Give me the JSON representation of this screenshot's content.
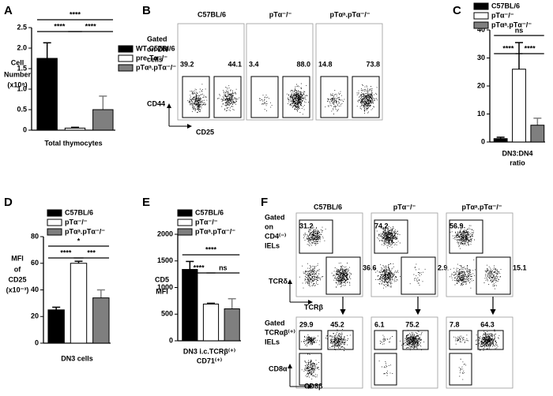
{
  "chart_data": [
    {
      "type": "bar",
      "letter": "A",
      "ylabel": [
        "Cell",
        "Number",
        "(x10⁸)"
      ],
      "categories": [
        "Total thymocytes"
      ],
      "ylim": [
        0,
        2.5
      ],
      "yticks": [
        0,
        0.5,
        {
          "value": 1,
          "label": "1.0"
        },
        1.5,
        {
          "value": 2,
          "label": "2.0"
        },
        2.5
      ],
      "series": [
        {
          "name": "WT C57Bl/6",
          "color": "#000000",
          "values": [
            1.75
          ],
          "errors": [
            0.38
          ]
        },
        {
          "name": "pre-Tα⁻/⁻",
          "color": "#ffffff",
          "values": [
            0.05
          ],
          "errors": [
            0.02
          ]
        },
        {
          "name": "pTαᵃ.pTα⁻/⁻",
          "color": "#7f7f7f",
          "values": [
            0.5
          ],
          "errors": [
            0.33
          ]
        }
      ],
      "significance": [
        {
          "label": "****",
          "pair": [
            0,
            2
          ]
        },
        {
          "label": "****",
          "pair": [
            0,
            1
          ]
        },
        {
          "label": "****",
          "pair": [
            1,
            2
          ]
        }
      ]
    },
    {
      "type": "bar",
      "letter": "C",
      "categories": [
        [
          "DN3:DN4",
          "ratio"
        ]
      ],
      "ylim": [
        0,
        40
      ],
      "yticks": [
        0,
        10,
        20,
        30,
        40
      ],
      "series": [
        {
          "name": "C57BL/6",
          "color": "#000000",
          "values": [
            1.2
          ],
          "errors": [
            0.5
          ]
        },
        {
          "name": "pTα⁻/⁻",
          "color": "#ffffff",
          "values": [
            26
          ],
          "errors": [
            9.5
          ]
        },
        {
          "name": "pTαᵃ.pTα⁻/⁻",
          "color": "#7f7f7f",
          "values": [
            6
          ],
          "errors": [
            2.5
          ]
        }
      ],
      "significance": [
        {
          "label": "ns",
          "pair": [
            0,
            2
          ]
        },
        {
          "label": "****",
          "pair": [
            0,
            1
          ]
        },
        {
          "label": "****",
          "pair": [
            1,
            2
          ]
        }
      ]
    },
    {
      "type": "bar",
      "letter": "D",
      "ylabel": [
        "MFI",
        "of",
        "CD25",
        "(x10⁻³)"
      ],
      "categories": [
        "DN3 cells"
      ],
      "ylim": [
        0,
        80
      ],
      "yticks": [
        0,
        20,
        40,
        60,
        80
      ],
      "series": [
        {
          "name": "C57BL/6",
          "color": "#000000",
          "values": [
            25
          ],
          "errors": [
            2
          ]
        },
        {
          "name": "pTα⁻/⁻",
          "color": "#ffffff",
          "values": [
            60
          ],
          "errors": [
            1.5
          ]
        },
        {
          "name": "pTαᵃ.pTα⁻/⁻",
          "color": "#7f7f7f",
          "values": [
            34
          ],
          "errors": [
            6
          ]
        }
      ],
      "significance": [
        {
          "label": "*",
          "pair": [
            0,
            2
          ]
        },
        {
          "label": "****",
          "pair": [
            0,
            1
          ]
        },
        {
          "label": "***",
          "pair": [
            1,
            2
          ]
        }
      ]
    },
    {
      "type": "bar",
      "letter": "E",
      "ylabel": [
        "CD5",
        "MFI"
      ],
      "categories": [
        [
          "DN3 i.c.TCRβ⁽⁺⁾",
          "CD71⁽⁺⁾"
        ]
      ],
      "ylim": [
        0,
        2000
      ],
      "yticks": [
        0,
        500,
        1000,
        1500,
        2000
      ],
      "series": [
        {
          "name": "C57BL/6",
          "color": "#000000",
          "values": [
            1340
          ],
          "errors": [
            150
          ]
        },
        {
          "name": "pTα⁻/⁻",
          "color": "#ffffff",
          "values": [
            690
          ],
          "errors": [
            15
          ]
        },
        {
          "name": "pTαᵃ.pTα⁻/⁻",
          "color": "#7f7f7f",
          "values": [
            600
          ],
          "errors": [
            190
          ]
        }
      ],
      "significance": [
        {
          "label": "****",
          "pair": [
            0,
            2
          ]
        },
        {
          "label": "****",
          "pair": [
            0,
            1
          ]
        },
        {
          "label": "ns",
          "pair": [
            1,
            2
          ]
        }
      ]
    }
  ],
  "flow_panels": [
    {
      "letter": "B",
      "columns": [
        "C57BL/6",
        "pTα⁻/⁻",
        "pTαᵃ.pTα⁻/⁻"
      ],
      "rows": [
        {
          "gate_label": [
            "Gated",
            "on DN",
            "cells"
          ],
          "y_axis": "CD44",
          "x_axis": "CD25",
          "percentages": [
            [
              "39.2",
              "44.1"
            ],
            [
              "3.4",
              "88.0"
            ],
            [
              "14.8",
              "73.8"
            ]
          ]
        }
      ]
    },
    {
      "letter": "F",
      "columns": [
        "C57BL/6",
        "pTα⁻/⁻",
        "pTαᵃ.pTα⁻/⁻"
      ],
      "rows": [
        {
          "gate_label": [
            "Gated",
            "on",
            "CD4⁽⁻⁾",
            "IELs"
          ],
          "y_axis": "TCRδ",
          "x_axis": "TCRβ",
          "percentages": [
            [
              "31.2",
              "36.6"
            ],
            [
              "74.2",
              "2.9"
            ],
            [
              "56.9",
              "15.1"
            ]
          ]
        },
        {
          "gate_label": [
            "Gated",
            "TCRαβ⁽⁺⁾",
            "IELs"
          ],
          "y_axis": "CD8α",
          "x_axis": "CD8β",
          "percentages": [
            [
              "29.9",
              "45.2"
            ],
            [
              "6.1",
              "75.2"
            ],
            [
              "7.8",
              "64.3"
            ]
          ]
        }
      ]
    }
  ]
}
